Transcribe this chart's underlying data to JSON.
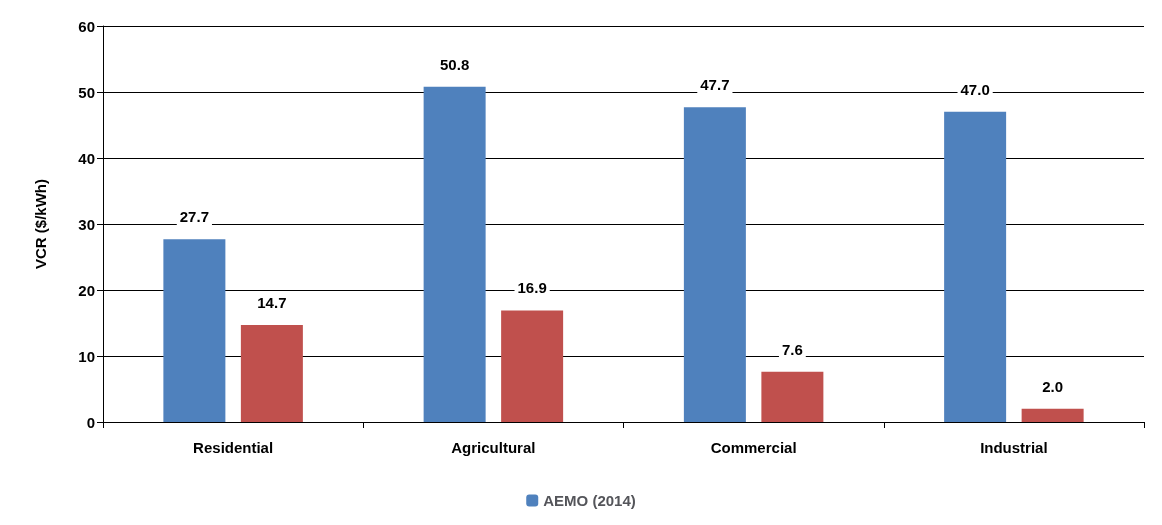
{
  "chart_data": {
    "type": "bar",
    "ylabel": "VCR ($/kWh)",
    "categories": [
      "Residential",
      "Agricultural",
      "Commercial",
      "Industrial"
    ],
    "series": [
      {
        "name": "AEMO (2014)",
        "color": "#4f81bd",
        "values": [
          27.7,
          50.8,
          47.7,
          47.0
        ],
        "value_labels": [
          "27.7",
          "50.8",
          "47.7",
          "47.0"
        ]
      },
      {
        "color": "#c0504d",
        "values": [
          14.7,
          16.9,
          7.6,
          2.0
        ],
        "value_labels": [
          "14.7",
          "16.9",
          "7.6",
          "2.0"
        ]
      }
    ],
    "ylim": [
      0,
      60
    ],
    "yticks": [
      0,
      10,
      20,
      30,
      40,
      50,
      60
    ],
    "grid": "y",
    "legend": "bottom"
  }
}
